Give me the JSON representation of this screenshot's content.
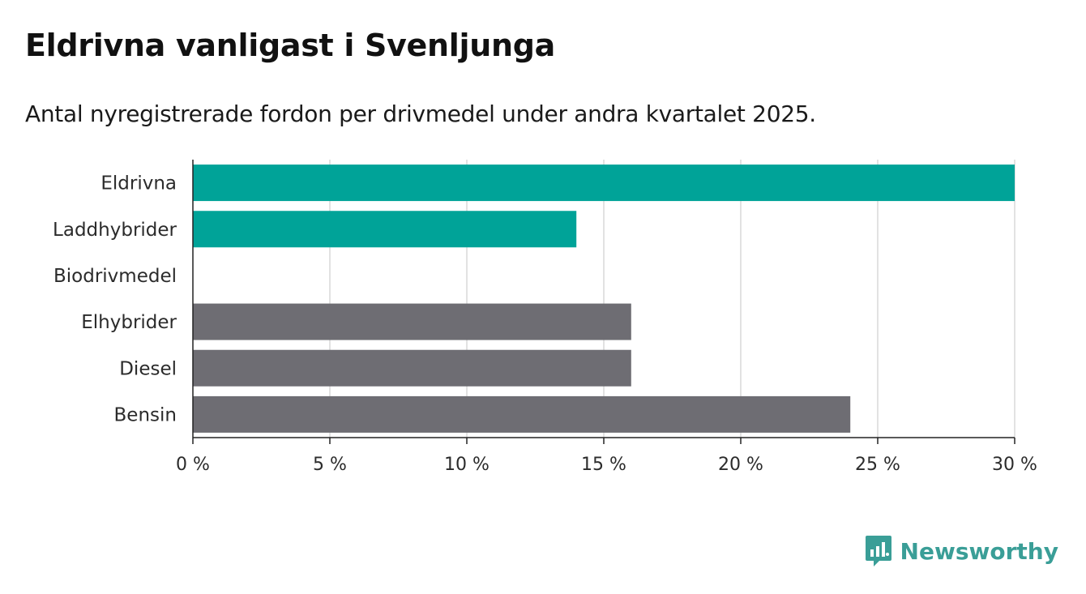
{
  "header": {
    "title": "Eldrivna vanligast i Svenljunga",
    "subtitle": "Antal nyregistrerade fordon per drivmedel under andra kvartalet 2025."
  },
  "brand": {
    "name": "Newsworthy",
    "icon": "newsworthy-logo-icon"
  },
  "colors": {
    "highlight": "#00a398",
    "default": "#6e6d73",
    "grid": "#d9d9d9",
    "axis": "#222222"
  },
  "chart_data": {
    "type": "bar",
    "orientation": "horizontal",
    "categories": [
      "Eldrivna",
      "Laddhybrider",
      "Biodrivmedel",
      "Elhybrider",
      "Diesel",
      "Bensin"
    ],
    "values": [
      30,
      14,
      0,
      16,
      16,
      24
    ],
    "highlighted": [
      true,
      true,
      false,
      false,
      false,
      false
    ],
    "xlim": [
      0,
      30
    ],
    "xticks": [
      0,
      5,
      10,
      15,
      20,
      25,
      30
    ],
    "tick_suffix": " %",
    "grid": "vertical",
    "xlabel": "",
    "ylabel": ""
  }
}
